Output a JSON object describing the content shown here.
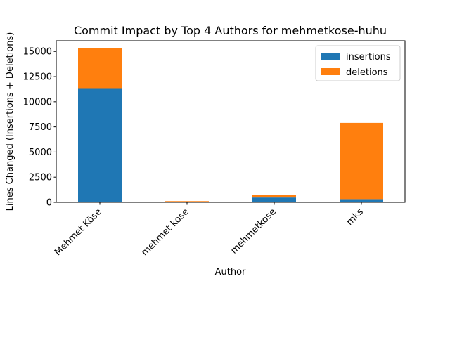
{
  "chart_data": {
    "type": "bar",
    "stacked": true,
    "title": "Commit Impact by Top 4 Authors for mehmetkose-huhu",
    "xlabel": "Author",
    "ylabel": "Lines Changed (Insertions + Deletions)",
    "categories": [
      "Mehmet Köse",
      "mehmet kose",
      "mehmetkose",
      "mks"
    ],
    "series": [
      {
        "name": "insertions",
        "color": "#1f77b4",
        "values": [
          11350,
          60,
          480,
          320
        ]
      },
      {
        "name": "deletions",
        "color": "#ff7f0e",
        "values": [
          3950,
          60,
          240,
          7580
        ]
      }
    ],
    "ylim": [
      0,
      16065
    ],
    "yticks": [
      0,
      2500,
      5000,
      7500,
      10000,
      12500,
      15000
    ],
    "ytick_labels": [
      "0",
      "2500",
      "5000",
      "7500",
      "10000",
      "12500",
      "15000"
    ],
    "legend_position": "upper right",
    "grid": false
  }
}
